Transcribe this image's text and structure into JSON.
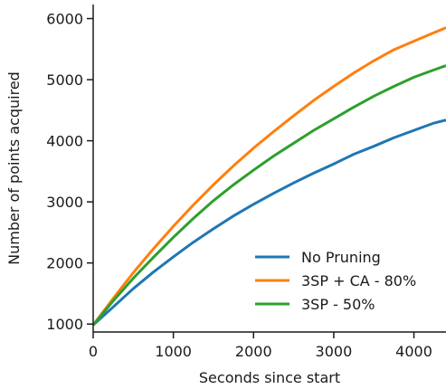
{
  "chart_data": {
    "type": "line",
    "title": "",
    "xlabel": "Seconds since start",
    "ylabel": "Number of points acquired",
    "xlim": [
      0,
      4400
    ],
    "ylim": [
      870,
      6230
    ],
    "xticks": [
      0,
      1000,
      2000,
      3000,
      4000
    ],
    "yticks": [
      1000,
      2000,
      3000,
      4000,
      5000,
      6000
    ],
    "grid": false,
    "legend": "lower-right",
    "series": [
      {
        "name": "No Pruning",
        "color": "#1f77b4",
        "x": [
          0,
          250,
          500,
          750,
          1000,
          1250,
          1500,
          1750,
          2000,
          2250,
          2500,
          2750,
          3000,
          3250,
          3500,
          3750,
          4000,
          4250,
          4400
        ],
        "y": [
          985,
          1280,
          1580,
          1850,
          2100,
          2340,
          2560,
          2770,
          2960,
          3140,
          3310,
          3470,
          3620,
          3780,
          3910,
          4050,
          4170,
          4290,
          4340
        ]
      },
      {
        "name": "3SP + CA - 80%",
        "color": "#ff7f0e",
        "x": [
          0,
          250,
          500,
          750,
          1000,
          1250,
          1500,
          1750,
          2000,
          2250,
          2500,
          2750,
          3000,
          3250,
          3500,
          3750,
          4000,
          4250,
          4400
        ],
        "y": [
          985,
          1420,
          1840,
          2230,
          2600,
          2950,
          3280,
          3590,
          3880,
          4150,
          4410,
          4660,
          4890,
          5110,
          5310,
          5490,
          5630,
          5770,
          5850
        ]
      },
      {
        "name": "3SP - 50%",
        "color": "#2ca02c",
        "x": [
          0,
          250,
          500,
          750,
          1000,
          1250,
          1500,
          1750,
          2000,
          2250,
          2500,
          2750,
          3000,
          3250,
          3500,
          3750,
          4000,
          4250,
          4400
        ],
        "y": [
          985,
          1380,
          1750,
          2090,
          2420,
          2730,
          3020,
          3280,
          3520,
          3750,
          3960,
          4170,
          4360,
          4550,
          4730,
          4890,
          5040,
          5160,
          5230
        ]
      }
    ]
  }
}
